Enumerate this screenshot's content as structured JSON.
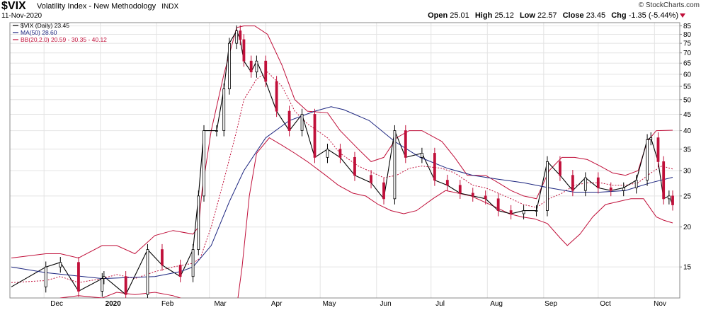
{
  "header": {
    "symbol": "$VIX",
    "description": "Volatility Index - New Methodology",
    "exchange": "INDX",
    "date": "11-Nov-2020",
    "brand": "© StockCharts.com",
    "open_label": "Open",
    "open": "25.01",
    "high_label": "High",
    "high": "25.12",
    "low_label": "Low",
    "low": "22.57",
    "close_label": "Close",
    "close": "23.45",
    "chg_label": "Chg",
    "chg": "-1.35 (-5.44%)"
  },
  "legend": [
    {
      "text": "$VIX (Daily) 23.45",
      "color": "#000000"
    },
    {
      "text": "MA(50) 28.60",
      "color": "#1a237e"
    },
    {
      "text": "BB(20,2.0) 20.59 - 30.35 - 40.12",
      "color": "#c0103a"
    }
  ],
  "colors": {
    "up": "#000000",
    "down": "#c0103a",
    "ma": "#1a237e",
    "bb": "#c0103a",
    "grid": "#e4e4e4"
  },
  "chart_data": {
    "type": "candlestick",
    "scale": "log",
    "ylim": [
      12,
      87
    ],
    "y_ticks": [
      15,
      20,
      25,
      30,
      35,
      40,
      45,
      50,
      55,
      60,
      65,
      70,
      75,
      80,
      85
    ],
    "x_labels": [
      "Dec",
      "2020",
      "Feb",
      "Mar",
      "Apr",
      "May",
      "Jun",
      "Jul",
      "Aug",
      "Sep",
      "Oct",
      "Nov"
    ],
    "grid": true,
    "legend_position": "top-left",
    "series": [
      {
        "name": "$VIX (Daily)",
        "last": 23.45,
        "path": [
          {
            "x": "Nov 13",
            "y": 13.0
          },
          {
            "x": "Dec 2",
            "y": 15.0
          },
          {
            "x": "Dec 10",
            "y": 15.5
          },
          {
            "x": "Dec 20",
            "y": 12.6
          },
          {
            "x": "Jan 2",
            "y": 13.8
          },
          {
            "x": "Jan 3",
            "y": 14.0
          },
          {
            "x": "Jan 15",
            "y": 12.3
          },
          {
            "x": "Jan 27",
            "y": 17.0
          },
          {
            "x": "Feb 4",
            "y": 15.2
          },
          {
            "x": "Feb 14",
            "y": 14.0
          },
          {
            "x": "Feb 21",
            "y": 17.0
          },
          {
            "x": "Feb 24",
            "y": 25.0
          },
          {
            "x": "Feb 27",
            "y": 40.0
          },
          {
            "x": "Mar 5",
            "y": 40.0
          },
          {
            "x": "Mar 9",
            "y": 54.0
          },
          {
            "x": "Mar 12",
            "y": 75.0
          },
          {
            "x": "Mar 16",
            "y": 82.0
          },
          {
            "x": "Mar 18",
            "y": 77.0
          },
          {
            "x": "Mar 20",
            "y": 66.0
          },
          {
            "x": "Mar 24",
            "y": 61.0
          },
          {
            "x": "Mar 27",
            "y": 66.0
          },
          {
            "x": "Apr 1",
            "y": 57.0
          },
          {
            "x": "Apr 7",
            "y": 46.0
          },
          {
            "x": "Apr 14",
            "y": 40.0
          },
          {
            "x": "Apr 21",
            "y": 45.0
          },
          {
            "x": "Apr 28",
            "y": 33.0
          },
          {
            "x": "May 5",
            "y": 35.0
          },
          {
            "x": "May 12",
            "y": 33.0
          },
          {
            "x": "May 20",
            "y": 29.0
          },
          {
            "x": "May 29",
            "y": 27.5
          },
          {
            "x": "Jun 5",
            "y": 24.5
          },
          {
            "x": "Jun 11",
            "y": 40.0
          },
          {
            "x": "Jun 17",
            "y": 33.0
          },
          {
            "x": "Jun 26",
            "y": 34.0
          },
          {
            "x": "Jul 3",
            "y": 28.0
          },
          {
            "x": "Jul 10",
            "y": 27.0
          },
          {
            "x": "Jul 17",
            "y": 25.5
          },
          {
            "x": "Jul 24",
            "y": 25.0
          },
          {
            "x": "Jul 31",
            "y": 24.5
          },
          {
            "x": "Aug 7",
            "y": 22.5
          },
          {
            "x": "Aug 14",
            "y": 22.0
          },
          {
            "x": "Aug 21",
            "y": 22.5
          },
          {
            "x": "Aug 28",
            "y": 22.5
          },
          {
            "x": "Sep 3",
            "y": 32.0
          },
          {
            "x": "Sep 10",
            "y": 29.0
          },
          {
            "x": "Sep 17",
            "y": 26.0
          },
          {
            "x": "Sep 24",
            "y": 28.5
          },
          {
            "x": "Oct 1",
            "y": 26.5
          },
          {
            "x": "Oct 8",
            "y": 26.0
          },
          {
            "x": "Oct 15",
            "y": 26.5
          },
          {
            "x": "Oct 22",
            "y": 28.0
          },
          {
            "x": "Oct 28",
            "y": 37.5
          },
          {
            "x": "Oct 30",
            "y": 38.0
          },
          {
            "x": "Nov 3",
            "y": 32.0
          },
          {
            "x": "Nov 6",
            "y": 24.5
          },
          {
            "x": "Nov 9",
            "y": 25.0
          },
          {
            "x": "Nov 11",
            "y": 23.45
          }
        ]
      },
      {
        "name": "MA(50)",
        "last": 28.6,
        "path": [
          {
            "x": "Nov 13",
            "y": 15.0
          },
          {
            "x": "Dec 2",
            "y": 14.4
          },
          {
            "x": "Jan 2",
            "y": 13.8
          },
          {
            "x": "Jan 31",
            "y": 14.0
          },
          {
            "x": "Feb 14",
            "y": 14.5
          },
          {
            "x": "Feb 21",
            "y": 15.0
          },
          {
            "x": "Mar 2",
            "y": 17.5
          },
          {
            "x": "Mar 12",
            "y": 24.0
          },
          {
            "x": "Mar 20",
            "y": 30.0
          },
          {
            "x": "Apr 1",
            "y": 38.0
          },
          {
            "x": "Apr 14",
            "y": 43.0
          },
          {
            "x": "Apr 28",
            "y": 46.0
          },
          {
            "x": "May 7",
            "y": 47.5
          },
          {
            "x": "May 14",
            "y": 46.5
          },
          {
            "x": "May 28",
            "y": 43.0
          },
          {
            "x": "Jun 11",
            "y": 37.0
          },
          {
            "x": "Jun 25",
            "y": 33.0
          },
          {
            "x": "Jul 10",
            "y": 30.5
          },
          {
            "x": "Jul 24",
            "y": 29.0
          },
          {
            "x": "Aug 7",
            "y": 28.2
          },
          {
            "x": "Aug 21",
            "y": 27.5
          },
          {
            "x": "Sep 4",
            "y": 26.5
          },
          {
            "x": "Sep 18",
            "y": 25.7
          },
          {
            "x": "Oct 2",
            "y": 25.7
          },
          {
            "x": "Oct 16",
            "y": 26.0
          },
          {
            "x": "Oct 30",
            "y": 27.5
          },
          {
            "x": "Nov 11",
            "y": 28.6
          }
        ]
      },
      {
        "name": "BB(20,2.0) upper",
        "last": 40.12,
        "path": [
          {
            "x": "Nov 13",
            "y": 16.0
          },
          {
            "x": "Dec 2",
            "y": 16.5
          },
          {
            "x": "Dec 10",
            "y": 16.5
          },
          {
            "x": "Dec 20",
            "y": 16.0
          },
          {
            "x": "Jan 2",
            "y": 17.5
          },
          {
            "x": "Jan 10",
            "y": 17.5
          },
          {
            "x": "Jan 20",
            "y": 16.5
          },
          {
            "x": "Jan 31",
            "y": 18.8
          },
          {
            "x": "Feb 10",
            "y": 19.5
          },
          {
            "x": "Feb 21",
            "y": 19.0
          },
          {
            "x": "Feb 24",
            "y": 20.0
          },
          {
            "x": "Feb 26",
            "y": 26.0
          },
          {
            "x": "Mar 2",
            "y": 40.0
          },
          {
            "x": "Mar 9",
            "y": 60.0
          },
          {
            "x": "Mar 16",
            "y": 84.0
          },
          {
            "x": "Mar 20",
            "y": 85.0
          },
          {
            "x": "Mar 26",
            "y": 85.0
          },
          {
            "x": "Apr 2",
            "y": 80.0
          },
          {
            "x": "Apr 10",
            "y": 64.0
          },
          {
            "x": "Apr 17",
            "y": 50.0
          },
          {
            "x": "Apr 24",
            "y": 46.0
          },
          {
            "x": "May 5",
            "y": 45.5
          },
          {
            "x": "May 12",
            "y": 40.0
          },
          {
            "x": "May 22",
            "y": 35.0
          },
          {
            "x": "May 29",
            "y": 32.0
          },
          {
            "x": "Jun 5",
            "y": 33.0
          },
          {
            "x": "Jun 12",
            "y": 38.0
          },
          {
            "x": "Jun 19",
            "y": 40.0
          },
          {
            "x": "Jun 26",
            "y": 40.0
          },
          {
            "x": "Jul 7",
            "y": 37.0
          },
          {
            "x": "Jul 14",
            "y": 33.0
          },
          {
            "x": "Jul 21",
            "y": 29.0
          },
          {
            "x": "Jul 31",
            "y": 29.0
          },
          {
            "x": "Aug 7",
            "y": 27.5
          },
          {
            "x": "Aug 14",
            "y": 26.0
          },
          {
            "x": "Aug 21",
            "y": 25.0
          },
          {
            "x": "Aug 28",
            "y": 24.5
          },
          {
            "x": "Sep 4",
            "y": 30.0
          },
          {
            "x": "Sep 11",
            "y": 33.0
          },
          {
            "x": "Sep 18",
            "y": 33.0
          },
          {
            "x": "Sep 25",
            "y": 32.5
          },
          {
            "x": "Oct 2",
            "y": 31.0
          },
          {
            "x": "Oct 9",
            "y": 29.5
          },
          {
            "x": "Oct 16",
            "y": 29.0
          },
          {
            "x": "Oct 23",
            "y": 30.0
          },
          {
            "x": "Oct 28",
            "y": 37.0
          },
          {
            "x": "Nov 2",
            "y": 40.0
          },
          {
            "x": "Nov 11",
            "y": 40.12
          }
        ]
      },
      {
        "name": "BB(20,2.0) middle",
        "last": 30.35,
        "path": [
          {
            "x": "Nov 13",
            "y": 13.4
          },
          {
            "x": "Dec 2",
            "y": 13.6
          },
          {
            "x": "Dec 10",
            "y": 14.0
          },
          {
            "x": "Dec 20",
            "y": 13.4
          },
          {
            "x": "Jan 2",
            "y": 13.8
          },
          {
            "x": "Jan 10",
            "y": 14.2
          },
          {
            "x": "Jan 20",
            "y": 13.8
          },
          {
            "x": "Jan 31",
            "y": 14.5
          },
          {
            "x": "Feb 10",
            "y": 15.0
          },
          {
            "x": "Feb 21",
            "y": 15.4
          },
          {
            "x": "Feb 25",
            "y": 16.0
          },
          {
            "x": "Mar 2",
            "y": 20.0
          },
          {
            "x": "Mar 9",
            "y": 28.0
          },
          {
            "x": "Mar 16",
            "y": 40.0
          },
          {
            "x": "Mar 20",
            "y": 50.0
          },
          {
            "x": "Mar 27",
            "y": 58.0
          },
          {
            "x": "Apr 2",
            "y": 61.0
          },
          {
            "x": "Apr 10",
            "y": 55.0
          },
          {
            "x": "Apr 17",
            "y": 46.0
          },
          {
            "x": "Apr 24",
            "y": 42.0
          },
          {
            "x": "May 5",
            "y": 38.0
          },
          {
            "x": "May 12",
            "y": 34.0
          },
          {
            "x": "May 22",
            "y": 31.0
          },
          {
            "x": "Jun 5",
            "y": 28.5
          },
          {
            "x": "Jun 12",
            "y": 29.0
          },
          {
            "x": "Jun 19",
            "y": 30.5
          },
          {
            "x": "Jun 26",
            "y": 31.0
          },
          {
            "x": "Jul 7",
            "y": 30.5
          },
          {
            "x": "Jul 14",
            "y": 29.5
          },
          {
            "x": "Jul 24",
            "y": 27.0
          },
          {
            "x": "Jul 31",
            "y": 26.5
          },
          {
            "x": "Aug 7",
            "y": 25.5
          },
          {
            "x": "Aug 14",
            "y": 24.5
          },
          {
            "x": "Aug 21",
            "y": 23.5
          },
          {
            "x": "Aug 28",
            "y": 23.0
          },
          {
            "x": "Sep 4",
            "y": 24.5
          },
          {
            "x": "Sep 11",
            "y": 25.5
          },
          {
            "x": "Sep 18",
            "y": 27.0
          },
          {
            "x": "Sep 25",
            "y": 27.5
          },
          {
            "x": "Oct 2",
            "y": 27.5
          },
          {
            "x": "Oct 9",
            "y": 27.0
          },
          {
            "x": "Oct 16",
            "y": 27.0
          },
          {
            "x": "Oct 23",
            "y": 27.5
          },
          {
            "x": "Oct 30",
            "y": 29.5
          },
          {
            "x": "Nov 5",
            "y": 31.0
          },
          {
            "x": "Nov 11",
            "y": 30.35
          }
        ]
      },
      {
        "name": "BB(20,2.0) lower",
        "last": 20.59,
        "path": [
          {
            "x": "Nov 13",
            "y": 11.6
          },
          {
            "x": "Dec 2",
            "y": 11.2
          },
          {
            "x": "Dec 10",
            "y": 12.0
          },
          {
            "x": "Dec 20",
            "y": 12.2
          },
          {
            "x": "Jan 2",
            "y": 12.0
          },
          {
            "x": "Jan 10",
            "y": 12.5
          },
          {
            "x": "Jan 20",
            "y": 12.3
          },
          {
            "x": "Jan 31",
            "y": 12.5
          },
          {
            "x": "Feb 10",
            "y": 12.2
          },
          {
            "x": "Feb 14",
            "y": 12.0
          },
          {
            "x": "Feb 21",
            "y": 11.6
          },
          {
            "x": "Feb 27",
            "y": 11.2
          },
          {
            "x": "Mar 2",
            "y": 11.2
          },
          {
            "x": "Mar 7",
            "y": 11.3
          },
          {
            "x": "Mar 13",
            "y": 11.2
          },
          {
            "x": "Mar 16",
            "y": 11.2
          },
          {
            "x": "Mar 19",
            "y": 15.0
          },
          {
            "x": "Mar 23",
            "y": 25.0
          },
          {
            "x": "Mar 27",
            "y": 34.0
          },
          {
            "x": "Apr 3",
            "y": 38.0
          },
          {
            "x": "Apr 10",
            "y": 36.0
          },
          {
            "x": "Apr 17",
            "y": 34.0
          },
          {
            "x": "Apr 24",
            "y": 32.0
          },
          {
            "x": "May 4",
            "y": 29.0
          },
          {
            "x": "May 11",
            "y": 27.0
          },
          {
            "x": "May 19",
            "y": 25.5
          },
          {
            "x": "May 26",
            "y": 25.0
          },
          {
            "x": "Jun 2",
            "y": 23.5
          },
          {
            "x": "Jun 9",
            "y": 22.5
          },
          {
            "x": "Jun 16",
            "y": 22.0
          },
          {
            "x": "Jun 23",
            "y": 22.5
          },
          {
            "x": "Jul 2",
            "y": 24.5
          },
          {
            "x": "Jul 9",
            "y": 26.0
          },
          {
            "x": "Jul 16",
            "y": 25.5
          },
          {
            "x": "Jul 23",
            "y": 25.0
          },
          {
            "x": "Jul 30",
            "y": 24.0
          },
          {
            "x": "Aug 6",
            "y": 23.0
          },
          {
            "x": "Aug 13",
            "y": 22.0
          },
          {
            "x": "Aug 20",
            "y": 21.5
          },
          {
            "x": "Aug 27",
            "y": 21.2
          },
          {
            "x": "Sep 3",
            "y": 20.5
          },
          {
            "x": "Sep 10",
            "y": 18.5
          },
          {
            "x": "Sep 14",
            "y": 17.5
          },
          {
            "x": "Sep 21",
            "y": 19.0
          },
          {
            "x": "Sep 28",
            "y": 21.5
          },
          {
            "x": "Oct 5",
            "y": 23.5
          },
          {
            "x": "Oct 12",
            "y": 24.0
          },
          {
            "x": "Oct 19",
            "y": 24.5
          },
          {
            "x": "Oct 26",
            "y": 24.5
          },
          {
            "x": "Nov 2",
            "y": 21.5
          },
          {
            "x": "Nov 6",
            "y": 21.0
          },
          {
            "x": "Nov 11",
            "y": 20.59
          }
        ]
      }
    ]
  }
}
